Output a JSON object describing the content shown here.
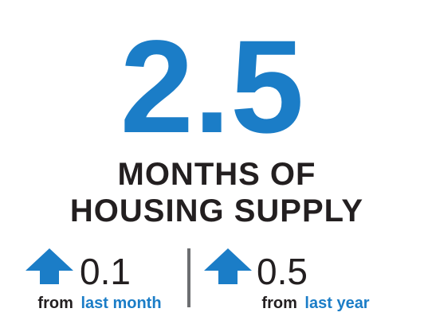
{
  "headline": {
    "value": 2.5,
    "label_lines": [
      "MONTHS OF",
      "HOUSING SUPPLY"
    ]
  },
  "changes": [
    {
      "value": 0.1,
      "prefix": "from",
      "period": "last month"
    },
    {
      "value": 0.5,
      "prefix": "from",
      "period": "last year"
    }
  ]
}
